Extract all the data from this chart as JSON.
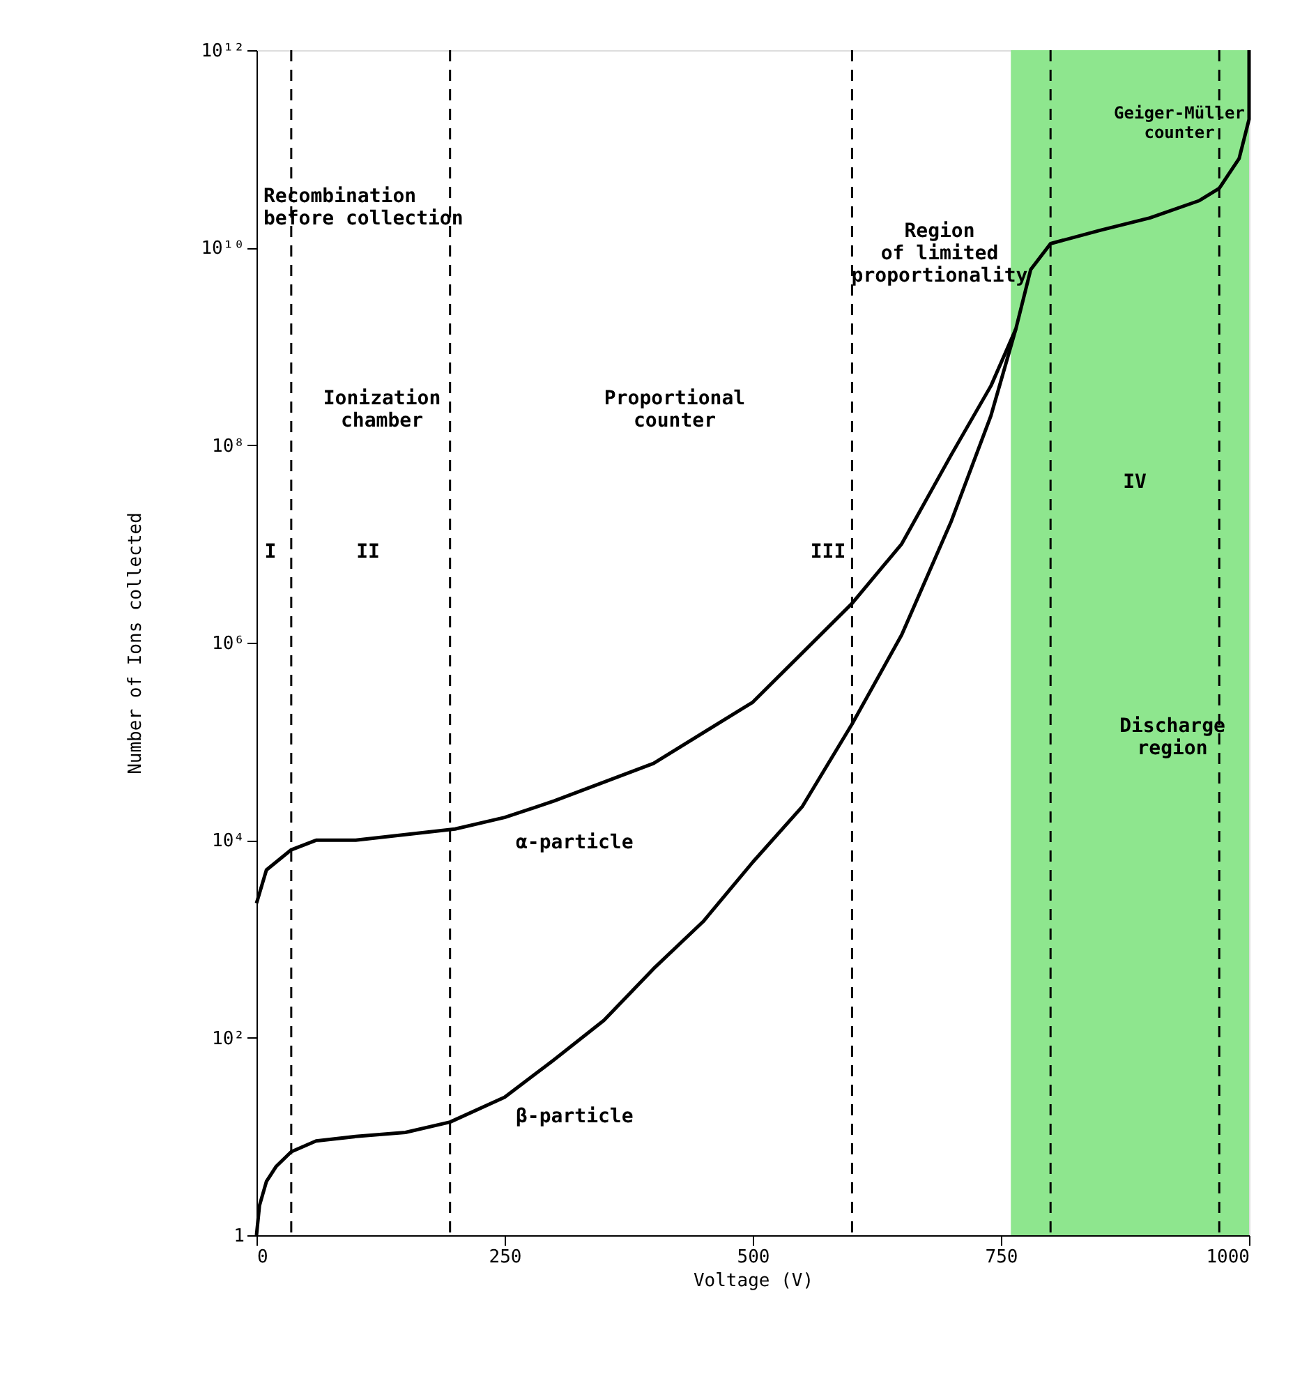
{
  "chart_data": {
    "type": "line",
    "xlabel": "Voltage  (V)",
    "ylabel": "Number of Ions collected",
    "log": "y",
    "grid": false,
    "line_style": "solid",
    "marker": "none",
    "xlim": [
      0,
      1000
    ],
    "xticks": [
      0,
      250,
      500,
      750,
      {
        "value": 1000,
        "label": "1000"
      }
    ],
    "ylim": [
      1,
      1000000000000
    ],
    "yticks": [
      {
        "value": 1,
        "label": "1"
      },
      {
        "value": 100,
        "label": "10²"
      },
      {
        "value": 10000,
        "label": "10⁴"
      },
      {
        "value": 1000000,
        "label": "10⁶"
      },
      {
        "value": 100000000,
        "label": "10⁸"
      },
      {
        "value": 10000000000,
        "label": "10¹⁰"
      },
      {
        "value": 1000000000000,
        "label": "10¹²"
      }
    ],
    "series": [
      {
        "name": "α-particle",
        "color": "#000000",
        "x": [
          0,
          10,
          35,
          60,
          100,
          200,
          250,
          300,
          400,
          500,
          600,
          650,
          700,
          740,
          765,
          780,
          800,
          850,
          900,
          950,
          970,
          990,
          1000,
          1000
        ],
        "values": [
          2300,
          5000,
          8000,
          10000,
          10000,
          13000,
          17000,
          25000,
          60000,
          250000,
          2500000,
          10000000,
          80000000,
          400000000,
          1500000000,
          6000000000,
          11000000000,
          15000000000,
          20000000000,
          30000000000,
          40000000000,
          80000000000,
          200000000000,
          1000000000000
        ]
      },
      {
        "name": "β-particle",
        "color": "#000000",
        "x": [
          0,
          3,
          10,
          20,
          35,
          60,
          100,
          150,
          195,
          250,
          300,
          350,
          400,
          450,
          500,
          550,
          600,
          650,
          700,
          740,
          765
        ],
        "values": [
          1,
          2,
          3.5,
          5,
          7,
          9,
          10,
          11,
          14,
          25,
          60,
          150,
          500,
          1500,
          6000,
          22000,
          150000,
          1200000,
          17000000,
          200000000,
          1500000000
        ]
      }
    ],
    "ref_lines": [
      {
        "axis": "x",
        "value": 35,
        "line_style": "dashed"
      },
      {
        "axis": "x",
        "value": 195,
        "line_style": "dashed"
      },
      {
        "axis": "x",
        "value": 600,
        "line_style": "dashed"
      },
      {
        "axis": "x",
        "value": 800,
        "line_style": "dashed"
      },
      {
        "axis": "x",
        "value": 970,
        "line_style": "dashed"
      }
    ],
    "bands": [
      {
        "axis": "x",
        "from": 760,
        "to": 1000,
        "color": "#8ee68e"
      }
    ],
    "annotations": [
      "Recombination\nbefore collection",
      "Ionization\nchamber",
      "Proportional\ncounter",
      "Region\nof limited\nproportionality",
      "Geiger-Müller\ncounter",
      "I",
      "II",
      "III",
      "IV",
      "Discharge\nregion"
    ]
  }
}
